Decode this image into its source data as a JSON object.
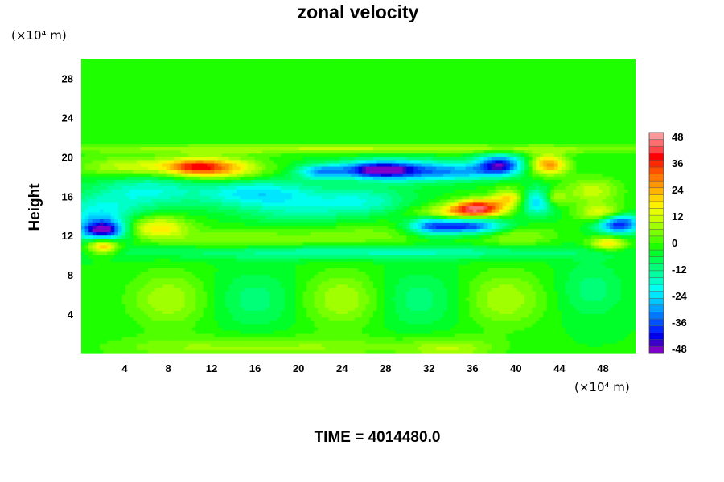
{
  "chart_data": {
    "type": "heatmap",
    "title": "zonal velocity",
    "ylabel": "Height",
    "y_unit_label": "(×10⁴ m)",
    "x_unit_label": "(×10⁴ m)",
    "footer": "TIME = 4014480.0",
    "xlim": [
      0,
      51
    ],
    "ylim": [
      0,
      30
    ],
    "x_ticks": [
      "4",
      "8",
      "12",
      "16",
      "20",
      "24",
      "28",
      "32",
      "36",
      "40",
      "44",
      "48"
    ],
    "y_ticks": [
      "4",
      "8",
      "12",
      "16",
      "20",
      "24",
      "28"
    ],
    "colorbar": {
      "range": [
        -50,
        50
      ],
      "step": 4,
      "ticks": [
        "48",
        "36",
        "24",
        "12",
        "0",
        "-12",
        "-24",
        "-36",
        "-48"
      ],
      "colors": [
        "#7f00c8",
        "#3c00c8",
        "#0000e6",
        "#0028ff",
        "#0050ff",
        "#0078ff",
        "#00a0ff",
        "#00c8ff",
        "#00e6ff",
        "#00fff0",
        "#00ffc8",
        "#00ffa0",
        "#00ff78",
        "#00ff50",
        "#00ff28",
        "#1eff00",
        "#50ff00",
        "#78ff00",
        "#a0ff00",
        "#c8ff00",
        "#e6ff00",
        "#fff000",
        "#ffd200",
        "#ffb400",
        "#ff9600",
        "#ff7800",
        "#ff5000",
        "#ff2800",
        "#ff0000",
        "#ff4646",
        "#ff6e6e",
        "#ff9a9a"
      ]
    },
    "background_value": -3,
    "features": [
      {
        "x": 2,
        "y": 12.5,
        "v": -42,
        "rx": 1.3,
        "ry": 0.7
      },
      {
        "x": 1.5,
        "y": 14,
        "v": -18,
        "rx": 2.5,
        "ry": 1.5
      },
      {
        "x": 2,
        "y": 11,
        "v": 30,
        "rx": 1.0,
        "ry": 0.6
      },
      {
        "x": 7,
        "y": 12.8,
        "v": 22,
        "rx": 2.0,
        "ry": 0.8
      },
      {
        "x": 6,
        "y": 16.5,
        "v": -15,
        "rx": 3.0,
        "ry": 1.2
      },
      {
        "x": 10.5,
        "y": 19,
        "v": 30,
        "rx": 2.0,
        "ry": 0.6
      },
      {
        "x": 13.5,
        "y": 18.8,
        "v": 20,
        "rx": 2.5,
        "ry": 0.8
      },
      {
        "x": 5,
        "y": 19,
        "v": 16,
        "rx": 3.5,
        "ry": 0.7
      },
      {
        "x": 16,
        "y": 16.3,
        "v": -20,
        "rx": 4.0,
        "ry": 1.0
      },
      {
        "x": 20,
        "y": 14.5,
        "v": -10,
        "rx": 3.5,
        "ry": 1.2
      },
      {
        "x": 22,
        "y": 18.5,
        "v": -24,
        "rx": 1.5,
        "ry": 0.5
      },
      {
        "x": 27,
        "y": 18.7,
        "v": -36,
        "rx": 2.5,
        "ry": 0.6
      },
      {
        "x": 30,
        "y": 18.6,
        "v": -22,
        "rx": 3.0,
        "ry": 0.8
      },
      {
        "x": 26,
        "y": 15.5,
        "v": -14,
        "rx": 3.0,
        "ry": 1.0
      },
      {
        "x": 38.5,
        "y": 19.2,
        "v": -40,
        "rx": 1.5,
        "ry": 0.7
      },
      {
        "x": 35,
        "y": 18.5,
        "v": -20,
        "rx": 2.5,
        "ry": 0.6
      },
      {
        "x": 43,
        "y": 19.2,
        "v": 30,
        "rx": 1.2,
        "ry": 0.7
      },
      {
        "x": 36.5,
        "y": 14.8,
        "v": 42,
        "rx": 1.6,
        "ry": 0.6
      },
      {
        "x": 34,
        "y": 14.2,
        "v": 20,
        "rx": 2.5,
        "ry": 0.6
      },
      {
        "x": 35.5,
        "y": 13,
        "v": -38,
        "rx": 2.5,
        "ry": 0.6
      },
      {
        "x": 32,
        "y": 13,
        "v": -22,
        "rx": 1.5,
        "ry": 0.7
      },
      {
        "x": 39.5,
        "y": 15.8,
        "v": 22,
        "rx": 1.2,
        "ry": 0.7
      },
      {
        "x": 42,
        "y": 15.5,
        "v": -26,
        "rx": 1.2,
        "ry": 0.9
      },
      {
        "x": 43.5,
        "y": 15.8,
        "v": 18,
        "rx": 0.8,
        "ry": 0.6
      },
      {
        "x": 49.5,
        "y": 13.2,
        "v": -40,
        "rx": 1.4,
        "ry": 0.7
      },
      {
        "x": 48,
        "y": 14.2,
        "v": 20,
        "rx": 1.5,
        "ry": 0.6
      },
      {
        "x": 48.5,
        "y": 11.2,
        "v": 22,
        "rx": 1.2,
        "ry": 0.5
      },
      {
        "x": 47,
        "y": 16.5,
        "v": 14,
        "rx": 1.8,
        "ry": 1.0
      },
      {
        "x": 40,
        "y": 12,
        "v": 10,
        "rx": 2.5,
        "ry": 0.8
      },
      {
        "x": 25,
        "y": 12,
        "v": 8,
        "rx": 6.0,
        "ry": 1.0
      },
      {
        "x": 14,
        "y": 11.5,
        "v": 8,
        "rx": 4.0,
        "ry": 0.8
      },
      {
        "x": 26,
        "y": 10.3,
        "v": -15,
        "rx": 14.0,
        "ry": 0.5
      },
      {
        "x": 15,
        "y": 20.8,
        "v": 10,
        "rx": 16.0,
        "ry": 0.35
      },
      {
        "x": 40,
        "y": 20.8,
        "v": 8,
        "rx": 14.0,
        "ry": 0.35
      },
      {
        "x": 8,
        "y": 5.5,
        "v": 12,
        "rx": 2.5,
        "ry": 2.0
      },
      {
        "x": 24,
        "y": 5.5,
        "v": 12,
        "rx": 2.5,
        "ry": 2.0
      },
      {
        "x": 39,
        "y": 5.5,
        "v": 12,
        "rx": 2.5,
        "ry": 2.0
      },
      {
        "x": 16,
        "y": 5.5,
        "v": -8,
        "rx": 2.5,
        "ry": 2.0
      },
      {
        "x": 31,
        "y": 5.5,
        "v": -8,
        "rx": 2.5,
        "ry": 2.0
      },
      {
        "x": 47,
        "y": 6.5,
        "v": -8,
        "rx": 2.0,
        "ry": 2.0
      },
      {
        "x": 34,
        "y": 0.5,
        "v": 12,
        "rx": 3.0,
        "ry": 0.8
      },
      {
        "x": 10,
        "y": 0.6,
        "v": 8,
        "rx": 6.0,
        "ry": 0.8
      },
      {
        "x": 22,
        "y": 0.6,
        "v": 8,
        "rx": 6.0,
        "ry": 0.8
      }
    ]
  }
}
